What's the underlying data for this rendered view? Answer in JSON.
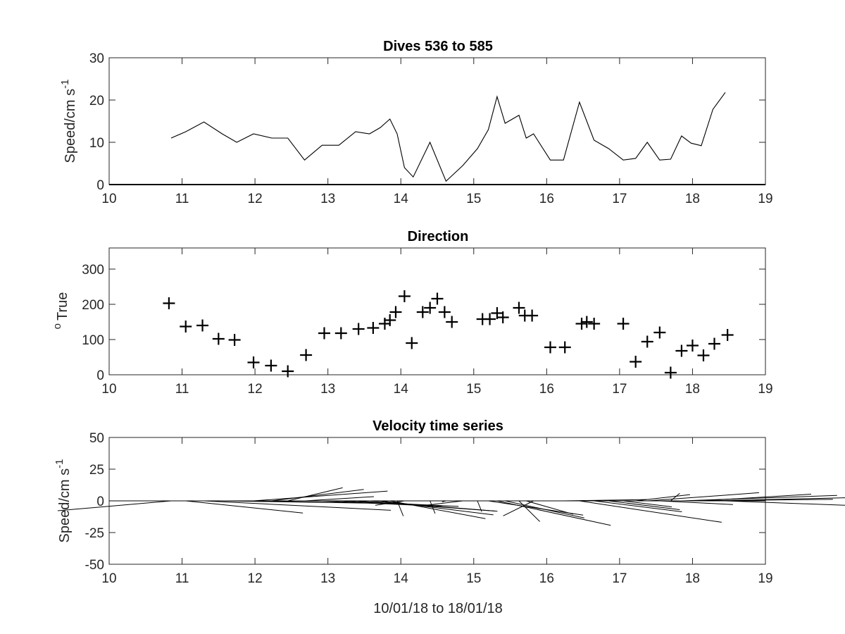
{
  "chart_data": [
    {
      "type": "line",
      "title": "Dives 536 to 585",
      "ylabel": "Speed/cm s",
      "ylabel_exponent": "-1",
      "xlim": [
        10,
        19
      ],
      "ylim": [
        0,
        30
      ],
      "xticks": [
        "10",
        "11",
        "12",
        "13",
        "14",
        "15",
        "16",
        "17",
        "18",
        "19"
      ],
      "yticks": [
        "0",
        "10",
        "20",
        "30"
      ],
      "series": [
        {
          "x": [
            10.85,
            11.05,
            11.3,
            11.55,
            11.75,
            11.98,
            12.23,
            12.45,
            12.68,
            12.92,
            13.15,
            13.38,
            13.57,
            13.72,
            13.85,
            13.95,
            14.05,
            14.17,
            14.4,
            14.62,
            14.85,
            15.05,
            15.2,
            15.32,
            15.43,
            15.62,
            15.72,
            15.82,
            16.05,
            16.23,
            16.45,
            16.65,
            16.85,
            17.05,
            17.22,
            17.38,
            17.55,
            17.7,
            17.85,
            17.98,
            18.12,
            18.28,
            18.45
          ],
          "y": [
            11,
            12.5,
            14.8,
            12,
            10,
            12,
            11,
            11,
            5.8,
            9.3,
            9.3,
            12.5,
            12,
            13.5,
            15.5,
            12,
            4,
            1.8,
            10,
            0.8,
            4.5,
            8.5,
            13,
            20.8,
            14.5,
            16.4,
            11,
            12,
            5.8,
            5.8,
            19.5,
            10.5,
            8.5,
            5.8,
            6.2,
            10,
            5.8,
            6,
            11.5,
            9.8,
            9.2,
            17.8,
            21.8
          ]
        }
      ]
    },
    {
      "type": "scatter",
      "title": "Direction",
      "ylabel": "True",
      "ylabel_prefix": "o",
      "xlim": [
        10,
        19
      ],
      "ylim": [
        0,
        360
      ],
      "xticks": [
        "10",
        "11",
        "12",
        "13",
        "14",
        "15",
        "16",
        "17",
        "18",
        "19"
      ],
      "yticks": [
        "0",
        "100",
        "200",
        "300"
      ],
      "series": [
        {
          "marker": "+",
          "x": [
            10.82,
            11.05,
            11.28,
            11.5,
            11.72,
            11.98,
            12.22,
            12.45,
            12.7,
            12.95,
            13.18,
            13.42,
            13.62,
            13.78,
            13.85,
            13.93,
            14.05,
            14.15,
            14.3,
            14.4,
            14.5,
            14.6,
            14.7,
            15.12,
            15.22,
            15.32,
            15.4,
            15.62,
            15.7,
            15.8,
            16.05,
            16.25,
            16.48,
            16.55,
            16.65,
            17.05,
            17.22,
            17.38,
            17.55,
            17.7,
            17.85,
            18.0,
            18.15,
            18.3,
            18.48
          ],
          "y": [
            203,
            137,
            140,
            102,
            99,
            35,
            26,
            10,
            56,
            118,
            118,
            130,
            133,
            145,
            155,
            178,
            223,
            90,
            178,
            190,
            216,
            178,
            150,
            158,
            158,
            175,
            163,
            190,
            168,
            168,
            78,
            78,
            145,
            150,
            145,
            145,
            37,
            94,
            120,
            6,
            68,
            83,
            55,
            88,
            113
          ]
        }
      ]
    },
    {
      "type": "stick",
      "title": "Velocity time series",
      "ylabel": "Speed/cm s",
      "ylabel_exponent": "-1",
      "xlabel": "10/01/18 to 18/01/18",
      "xlim": [
        10,
        19
      ],
      "ylim": [
        -50,
        50
      ],
      "xticks": [
        "10",
        "11",
        "12",
        "13",
        "14",
        "15",
        "16",
        "17",
        "18",
        "19"
      ],
      "yticks": [
        "-50",
        "-25",
        "0",
        "25",
        "50"
      ],
      "x": [
        10.85,
        11.05,
        11.3,
        11.55,
        11.75,
        11.98,
        12.23,
        12.45,
        12.68,
        12.92,
        13.15,
        13.38,
        13.57,
        13.72,
        13.85,
        13.95,
        14.05,
        14.17,
        14.4,
        14.62,
        14.85,
        15.05,
        15.2,
        15.32,
        15.43,
        15.62,
        15.72,
        15.82,
        16.05,
        16.23,
        16.45,
        16.65,
        16.85,
        17.05,
        17.22,
        17.38,
        17.55,
        17.7,
        17.85,
        17.98,
        18.12,
        18.28,
        18.45
      ],
      "speed": [
        11,
        12.5,
        14.8,
        12,
        10,
        12,
        11,
        11,
        5.8,
        9.3,
        9.3,
        12.5,
        12,
        13.5,
        15.5,
        12,
        4,
        1.8,
        10,
        0.8,
        4.5,
        8.5,
        13,
        20.8,
        14.5,
        16.4,
        11,
        12,
        5.8,
        5.8,
        19.5,
        10.5,
        8.5,
        5.8,
        6.2,
        10,
        5.8,
        6,
        11.5,
        9.8,
        9.2,
        17.8,
        21.8
      ],
      "direction": [
        225,
        140,
        120,
        100,
        100,
        50,
        35,
        20,
        55,
        118,
        118,
        130,
        133,
        145,
        155,
        178,
        210,
        90,
        178,
        200,
        216,
        178,
        150,
        158,
        158,
        175,
        163,
        190,
        90,
        80,
        150,
        145,
        145,
        145,
        37,
        50,
        120,
        6,
        68,
        83,
        55,
        75,
        113
      ]
    }
  ]
}
